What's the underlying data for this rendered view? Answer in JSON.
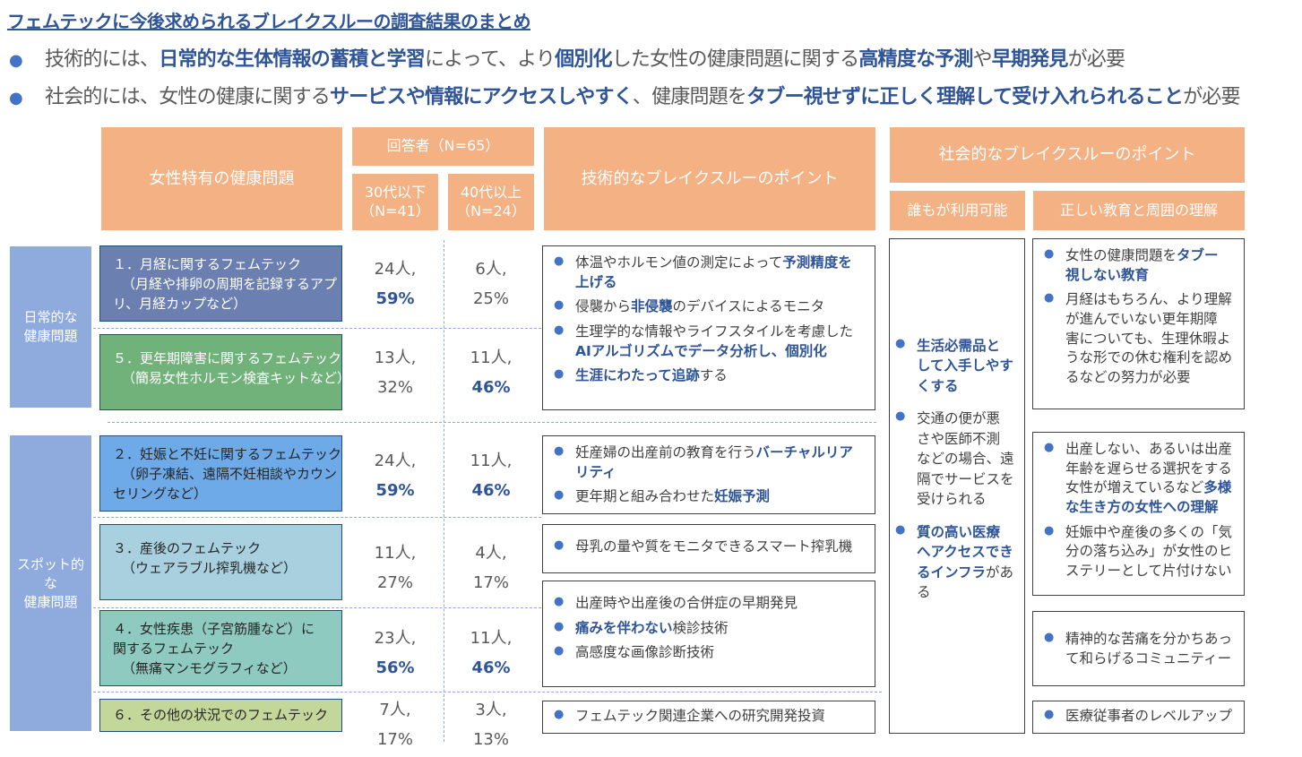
{
  "title": "フェムテックに今後求められるブレイクスルーの調査結果のまとめ",
  "bullets": [
    {
      "t1": "技術的には、",
      "b1": "日常的な生体情報の蓄積と学習",
      "t2": "によって、より",
      "b2": "個別化",
      "t3": "した女性の健康問題に関する",
      "b3": "高精度な予測",
      "t4": "や",
      "b4": "早期発見",
      "t5": "が必要"
    },
    {
      "t1": "社会的には、女性の健康に関する",
      "b1": "サービスや情報にアクセスしやすく",
      "t2": "、健康問題を",
      "b2": "タブー視せずに正しく理解して受け入れられること",
      "t3": "が必要"
    }
  ],
  "headers": {
    "health": "女性特有の健康問題",
    "respondents": "回答者（N=65）",
    "under30_l1": "30代以下",
    "under30_l2": "（N=41）",
    "over40_l1": "40代以上",
    "over40_l2": "（N=24）",
    "tech": "技術的なブレイクスルーのポイント",
    "social": "社会的なブレイクスルーのポイント",
    "social_sub1": "誰もが利用可能",
    "social_sub2": "正しい教育と周囲の理解"
  },
  "categories": {
    "daily_l1": "日常的な",
    "daily_l2": "健康問題",
    "spot_l1": "スポット的",
    "spot_l2": "な",
    "spot_l3": "健康問題"
  },
  "colors": {
    "header": "#f4b183",
    "category": "#8faadc",
    "row1": "#6b7fb0",
    "row2": "#70b27a",
    "row3": "#6ea9e8",
    "row4": "#a8d0de",
    "row5": "#8ecac0",
    "row6": "#c4d79b",
    "accent": "#2f5597"
  },
  "rows": [
    {
      "l1": "１．月経に関するフェムテック",
      "l2": "（月経や排卵の周期を記録するアプ",
      "l3": "リ、月経カップなど）",
      "u30a": "24人,",
      "u30b": "59%",
      "o40a": "6人,",
      "o40b": "25%"
    },
    {
      "l1": "５．更年期障害に関するフェムテック",
      "l2": "（簡易女性ホルモン検査キットなど）",
      "u30a": "13人,",
      "u30b": "32%",
      "o40a": "11人,",
      "o40b": "46%"
    },
    {
      "l1": "２．妊娠と不妊に関するフェムテック",
      "l2": "（卵子凍結、遠隔不妊相談やカウン",
      "l3": "セリングなど）",
      "u30a": "24人,",
      "u30b": "59%",
      "o40a": "11人,",
      "o40b": "46%"
    },
    {
      "l1": "３．産後のフェムテック",
      "l2": "（ウェアラブル搾乳機など）",
      "u30a": "11人,",
      "u30b": "27%",
      "o40a": "4人,",
      "o40b": "17%"
    },
    {
      "l1": "４．女性疾患（子宮筋腫など）に",
      "l2": "関するフェムテック",
      "l3": "（無痛マンモグラフィなど）",
      "u30a": "23人,",
      "u30b": "56%",
      "o40a": "11人,",
      "o40b": "46%"
    },
    {
      "l1": "６．その他の状況でのフェムテック",
      "u30a": "7人,",
      "u30b": "17%",
      "o40a": "3人,",
      "o40b": "13%"
    }
  ],
  "tech": {
    "box1": [
      {
        "t1": "体温やホルモン値の測定によって",
        "b1": "予測精度を",
        "b2": "上げる"
      },
      {
        "t1": "侵襲から",
        "b1": "非侵襲",
        "t2": "のデバイスによるモニタ"
      },
      {
        "t1": "生理学的な情報やライフスタイルを考慮した",
        "b1": "AIアルゴリズムでデータ分析し、個別化"
      },
      {
        "b1": "生涯にわたって追跡",
        "t1": "する"
      }
    ],
    "box2": [
      {
        "t1": "妊産婦の出産前の教育を行う",
        "b1": "バーチャルリア",
        "b2": "リティ"
      },
      {
        "t1": "更年期と組み合わせた",
        "b1": "妊娠予測"
      }
    ],
    "box3": [
      {
        "t1": "母乳の量や質をモニタできるスマート搾乳機"
      }
    ],
    "box4": [
      {
        "t1": "出産時や出産後の合併症の早期発見"
      },
      {
        "b1": "痛みを伴わない",
        "t1": "検診技術"
      },
      {
        "t1": "高感度な画像診断技術"
      }
    ],
    "box5": [
      {
        "t1": "フェムテック関連企業への研究開発投資"
      }
    ]
  },
  "social_access": [
    {
      "b1": "生活必需品と",
      "b2": "して入手しやす",
      "b3": "くする"
    },
    {
      "t1": "交通の便が悪",
      "t2": "さや医師不測",
      "t3": "などの場合、遠",
      "t4": "隔でサービスを",
      "t5": "受けられる"
    },
    {
      "b1": "質の高い医療",
      "b2": "へアクセスでき",
      "b3": "るインフラ",
      "t1": "がある"
    }
  ],
  "social_edu": {
    "box1": [
      {
        "t1": "女性の健康問題を",
        "b1": "タブー",
        "b2": "視しない教育"
      },
      {
        "t1": "月経はもちろん、より理解",
        "t2": "が進んでいない更年期障",
        "t3": "害についても、生理休暇よ",
        "t4": "うな形での休む権利を認め",
        "t5": "るなどの努力が必要"
      }
    ],
    "box2": [
      {
        "t1": "出産しない、あるいは出産",
        "t2": "年齢を遅らせる選択をする",
        "t3": "女性が増えているなど",
        "b1": "多様",
        "b2": "な生き方の女性への理解"
      },
      {
        "t1": "妊娠中や産後の多くの「気",
        "t2": "分の落ち込み」が女性のヒ",
        "t3": "ステリーとして片付けない"
      }
    ],
    "box3": [
      {
        "t1": "精神的な苦痛を分かちあっ",
        "t2": "て和らげるコミュニティー"
      }
    ],
    "box4": [
      {
        "t1": "医療従事者のレベルアップ"
      }
    ]
  }
}
